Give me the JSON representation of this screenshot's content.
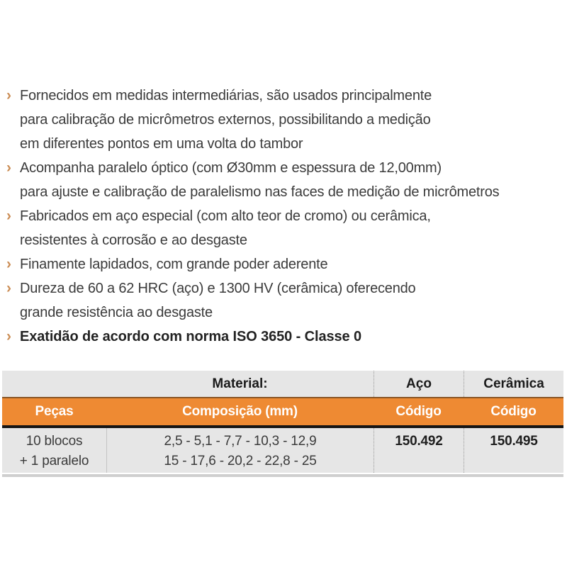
{
  "bullets": {
    "marker": "›",
    "items": [
      {
        "lines": [
          "Fornecidos em medidas intermediárias, são usados principalmente",
          "para calibração de micrômetros externos, possibilitando a medição",
          "em diferentes pontos em uma volta do tambor"
        ]
      },
      {
        "lines": [
          "Acompanha paralelo óptico (com Ø30mm e espessura de 12,00mm)",
          "para ajuste e calibração de paralelismo nas faces de medição de micrômetros"
        ]
      },
      {
        "lines": [
          "Fabricados em aço especial (com alto teor de cromo) ou cerâmica,",
          "resistentes à corrosão e ao desgaste"
        ]
      },
      {
        "lines": [
          "Finamente lapidados, com grande poder aderente"
        ]
      },
      {
        "lines": [
          "Dureza de 60 a 62 HRC (aço) e 1300 HV (cerâmica) oferecendo",
          "grande resistência ao desgaste"
        ]
      },
      {
        "lines": [
          "Exatidão de acordo com norma ISO 3650 - Classe 0"
        ],
        "bold": true
      }
    ]
  },
  "table": {
    "group_header": {
      "material_label": "Material:",
      "aco_label": "Aço",
      "ceramica_label": "Cerâmica"
    },
    "column_headers": {
      "pecas": "Peças",
      "composicao": "Composição (mm)",
      "codigo_aco": "Código",
      "codigo_ceramica": "Código"
    },
    "row": {
      "pecas_line1": "10 blocos",
      "pecas_line2": "+ 1 paralelo",
      "composicao_line1": "2,5 - 5,1 - 7,7 - 10,3 - 12,9",
      "composicao_line2": "15 - 17,6 - 20,2 - 22,8 - 25",
      "codigo_aco": "150.492",
      "codigo_ceramica": "150.495"
    }
  },
  "colors": {
    "accent_orange": "#EE8A33",
    "row_gray": "#E6E6E6",
    "divider_black": "#151515",
    "bullet_marker_orange": "#CB8D55",
    "bottom_rule_gray": "#CFCFCF"
  }
}
